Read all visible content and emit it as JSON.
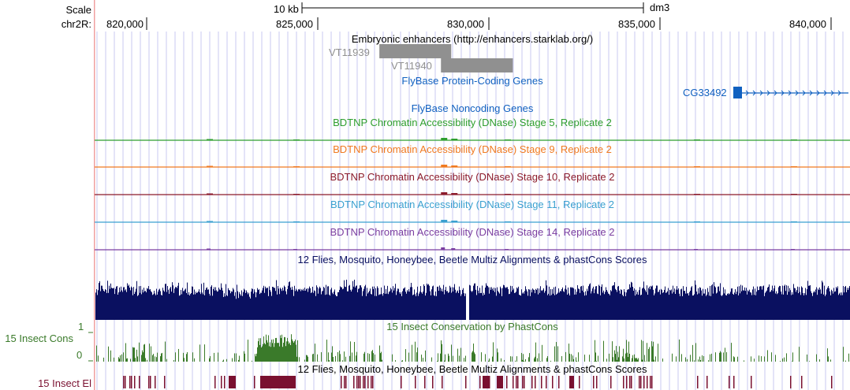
{
  "ruler": {
    "scale_label": "Scale",
    "chrom_label": "chr2R:",
    "scale_bar_label": "10 kb",
    "assembly": "dm3",
    "ticks": [
      "820,000",
      "825,000",
      "830,000",
      "835,000",
      "840,000"
    ]
  },
  "tracks": {
    "enhancers": {
      "title": "Embryonic enhancers (http://enhancers.starklab.org/)",
      "items": [
        {
          "name": "VT11939",
          "start": 826800,
          "end": 828900
        },
        {
          "name": "VT11940",
          "start": 828600,
          "end": 830700
        }
      ]
    },
    "flybase_coding": {
      "title": "FlyBase Protein-Coding Genes",
      "gene": {
        "name": "CG33492",
        "strand": "+"
      }
    },
    "flybase_noncoding": {
      "title": "FlyBase Noncoding Genes"
    },
    "dnase": [
      {
        "title": "BDTNP Chromatin Accessibility (DNase) Stage 5, Replicate 2",
        "color": "#2e9e2e"
      },
      {
        "title": "BDTNP Chromatin Accessibility (DNase) Stage 9, Replicate 2",
        "color": "#f07a20"
      },
      {
        "title": "BDTNP Chromatin Accessibility (DNase) Stage 10, Replicate 2",
        "color": "#8b1a2b"
      },
      {
        "title": "BDTNP Chromatin Accessibility (DNase) Stage 11, Replicate 2",
        "color": "#3aa0d0"
      },
      {
        "title": "BDTNP Chromatin Accessibility (DNase) Stage 14, Replicate 2",
        "color": "#7a3da0"
      }
    ],
    "multiz": {
      "title": "12 Flies, Mosquito, Honeybee, Beetle Multiz Alignments & phastCons Scores",
      "color": "#0a1060"
    },
    "phastcons": {
      "title": "15 Insect Conservation by PhastCons",
      "left_label": "15 Insect Cons",
      "ymax_label": "1",
      "ymin_label": "0",
      "color": "#3a7a2a"
    },
    "elements": {
      "title": "12 Flies, Mosquito, Honeybee, Beetle Multiz Alignments & phastCons Scores",
      "left_label": "15 Insect El",
      "color": "#7a1030"
    }
  },
  "colors": {
    "title_blue": "#1060c0",
    "grid": "#c8c8f0",
    "left_border": "#f0a0a0",
    "enhancer_gray": "#909090"
  }
}
